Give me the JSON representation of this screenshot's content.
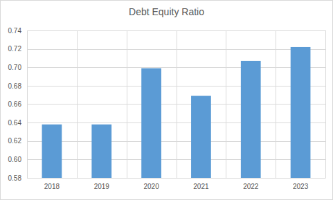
{
  "chart_data": {
    "type": "bar",
    "title": "Debt Equity Ratio",
    "categories": [
      "2018",
      "2019",
      "2020",
      "2021",
      "2022",
      "2023"
    ],
    "values": [
      0.638,
      0.638,
      0.699,
      0.669,
      0.707,
      0.722
    ],
    "color": "#5b9bd5",
    "ylim": [
      0.58,
      0.74
    ],
    "yticks": [
      0.58,
      {
        "value": 0.6,
        "label": "0.60"
      },
      0.62,
      0.64,
      0.66,
      0.68,
      {
        "value": 0.7,
        "label": "0.70"
      },
      0.72,
      0.74
    ],
    "grid": true
  }
}
